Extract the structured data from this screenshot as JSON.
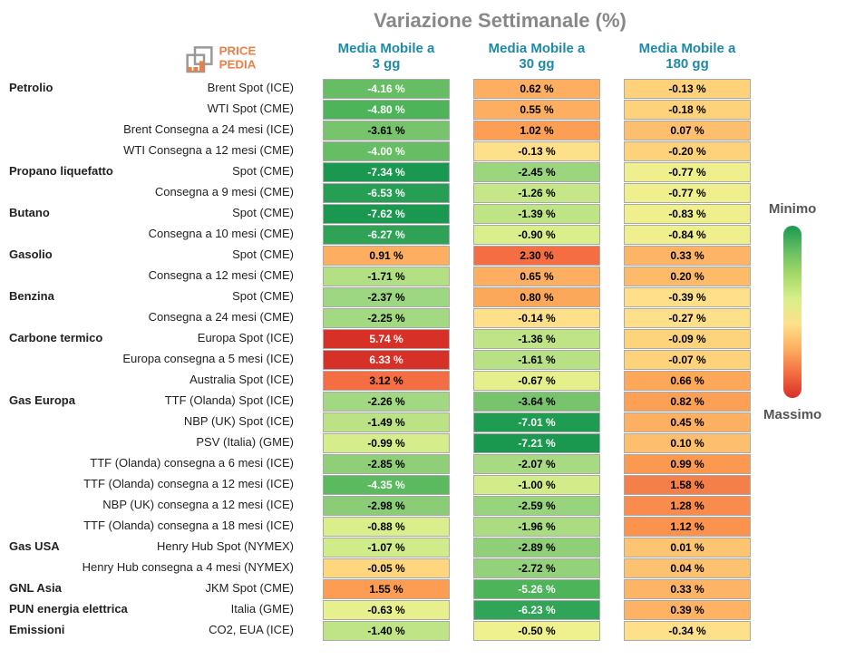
{
  "title": "Variazione Settimanale (%)",
  "columns": [
    {
      "label_line1": "Media Mobile a",
      "label_line2": "3 gg"
    },
    {
      "label_line1": "Media Mobile a",
      "label_line2": "30 gg"
    },
    {
      "label_line1": "Media Mobile a",
      "label_line2": "180 gg"
    }
  ],
  "legend": {
    "top": "Minimo",
    "bottom": "Massimo",
    "gradient": "linear-gradient(to bottom,#1a9850,#66bd63,#a6d96a,#d9ef8b,#fee08b,#fdae61,#f46d43,#d73027)"
  },
  "rows": [
    {
      "category": "Petrolio",
      "name": "Brent Spot (ICE)",
      "cells": [
        {
          "text": "-4.16 %",
          "bg": "#66bd63",
          "fg": "#fff"
        },
        {
          "text": "0.62 %",
          "bg": "#fdae61",
          "fg": "#000"
        },
        {
          "text": "-0.13 %",
          "bg": "#fdd27a",
          "fg": "#000"
        }
      ]
    },
    {
      "name": "WTI Spot (CME)",
      "cells": [
        {
          "text": "-4.80 %",
          "bg": "#4db45a",
          "fg": "#fff"
        },
        {
          "text": "0.55 %",
          "bg": "#fdae61",
          "fg": "#000"
        },
        {
          "text": "-0.18 %",
          "bg": "#fdd27a",
          "fg": "#000"
        }
      ]
    },
    {
      "name": "Brent Consegna a 24 mesi (ICE)",
      "cells": [
        {
          "text": "-3.61 %",
          "bg": "#77c46d",
          "fg": "#000"
        },
        {
          "text": "1.02 %",
          "bg": "#fc9f55",
          "fg": "#000"
        },
        {
          "text": "0.07 %",
          "bg": "#fdbf6e",
          "fg": "#000"
        }
      ]
    },
    {
      "name": "WTI Consegna a 12 mesi (CME)",
      "cells": [
        {
          "text": "-4.00 %",
          "bg": "#66bd63",
          "fg": "#fff"
        },
        {
          "text": "-0.13 %",
          "bg": "#fee08b",
          "fg": "#000"
        },
        {
          "text": "-0.20 %",
          "bg": "#fdd27a",
          "fg": "#000"
        }
      ]
    },
    {
      "category": "Propano liquefatto",
      "name": "Spot (CME)",
      "cells": [
        {
          "text": "-7.34 %",
          "bg": "#1a9850",
          "fg": "#fff"
        },
        {
          "text": "-2.45 %",
          "bg": "#9bd67f",
          "fg": "#000"
        },
        {
          "text": "-0.77 %",
          "bg": "#f0ef8e",
          "fg": "#000"
        }
      ]
    },
    {
      "name": "Consegna a 9 mesi (CME)",
      "cells": [
        {
          "text": "-6.53 %",
          "bg": "#269e53",
          "fg": "#fff"
        },
        {
          "text": "-1.26 %",
          "bg": "#c6e787",
          "fg": "#000"
        },
        {
          "text": "-0.77 %",
          "bg": "#f0ef8e",
          "fg": "#000"
        }
      ]
    },
    {
      "category": "Butano",
      "name": "Spot (CME)",
      "cells": [
        {
          "text": "-7.62 %",
          "bg": "#1a9850",
          "fg": "#fff"
        },
        {
          "text": "-1.39 %",
          "bg": "#bfe486",
          "fg": "#000"
        },
        {
          "text": "-0.83 %",
          "bg": "#f0ef8e",
          "fg": "#000"
        }
      ]
    },
    {
      "name": "Consegna a 10 mesi (CME)",
      "cells": [
        {
          "text": "-6.27 %",
          "bg": "#2ea356",
          "fg": "#fff"
        },
        {
          "text": "-0.90 %",
          "bg": "#daef8b",
          "fg": "#000"
        },
        {
          "text": "-0.84 %",
          "bg": "#f0ef8e",
          "fg": "#000"
        }
      ]
    },
    {
      "category": "Gasolio",
      "name": "Spot (CME)",
      "cells": [
        {
          "text": "0.91 %",
          "bg": "#fdae61",
          "fg": "#000"
        },
        {
          "text": "2.30 %",
          "bg": "#f46d43",
          "fg": "#000"
        },
        {
          "text": "0.33 %",
          "bg": "#fdb466",
          "fg": "#000"
        }
      ]
    },
    {
      "name": "Consegna a 12 mesi (CME)",
      "cells": [
        {
          "text": "-1.71 %",
          "bg": "#b4e084",
          "fg": "#000"
        },
        {
          "text": "0.65 %",
          "bg": "#fdae61",
          "fg": "#000"
        },
        {
          "text": "0.20 %",
          "bg": "#fdbb6a",
          "fg": "#000"
        }
      ]
    },
    {
      "category": "Benzina",
      "name": "Spot (CME)",
      "cells": [
        {
          "text": "-2.37 %",
          "bg": "#9ed781",
          "fg": "#000"
        },
        {
          "text": "0.80 %",
          "bg": "#fca85a",
          "fg": "#000"
        },
        {
          "text": "-0.39 %",
          "bg": "#fee08b",
          "fg": "#000"
        }
      ]
    },
    {
      "name": "Consegna a 24 mesi (CME)",
      "cells": [
        {
          "text": "-2.25 %",
          "bg": "#a3d981",
          "fg": "#000"
        },
        {
          "text": "-0.14 %",
          "bg": "#fee08b",
          "fg": "#000"
        },
        {
          "text": "-0.27 %",
          "bg": "#fee08b",
          "fg": "#000"
        }
      ]
    },
    {
      "category": "Carbone termico",
      "name": "Europa Spot (ICE)",
      "cells": [
        {
          "text": "5.74 %",
          "bg": "#d73027",
          "fg": "#fff"
        },
        {
          "text": "-1.36 %",
          "bg": "#bfe486",
          "fg": "#000"
        },
        {
          "text": "-0.09 %",
          "bg": "#fdd47c",
          "fg": "#000"
        }
      ]
    },
    {
      "name": "Europa consegna a 5 mesi (ICE)",
      "cells": [
        {
          "text": "6.33 %",
          "bg": "#d73027",
          "fg": "#fff"
        },
        {
          "text": "-1.61 %",
          "bg": "#b7e184",
          "fg": "#000"
        },
        {
          "text": "-0.07 %",
          "bg": "#fdd27a",
          "fg": "#000"
        }
      ]
    },
    {
      "name": "Australia Spot (ICE)",
      "cells": [
        {
          "text": "3.12 %",
          "bg": "#f46d43",
          "fg": "#000"
        },
        {
          "text": "-0.67 %",
          "bg": "#e5f08d",
          "fg": "#000"
        },
        {
          "text": "0.66 %",
          "bg": "#fda859",
          "fg": "#000"
        }
      ]
    },
    {
      "category": "Gas Europa",
      "name": "TTF (Olanda) Spot (ICE)",
      "cells": [
        {
          "text": "-2.26 %",
          "bg": "#a2d881",
          "fg": "#000"
        },
        {
          "text": "-3.64 %",
          "bg": "#77c46d",
          "fg": "#000"
        },
        {
          "text": "0.82 %",
          "bg": "#fca055",
          "fg": "#000"
        }
      ]
    },
    {
      "name": "NBP (UK) Spot (ICE)",
      "cells": [
        {
          "text": "-1.49 %",
          "bg": "#bbe285",
          "fg": "#000"
        },
        {
          "text": "-7.01 %",
          "bg": "#1f9b52",
          "fg": "#fff"
        },
        {
          "text": "0.45 %",
          "bg": "#fdb062",
          "fg": "#000"
        }
      ]
    },
    {
      "name": "PSV (Italia) (GME)",
      "cells": [
        {
          "text": "-0.99 %",
          "bg": "#d5ed8a",
          "fg": "#000"
        },
        {
          "text": "-7.21 %",
          "bg": "#1a9850",
          "fg": "#fff"
        },
        {
          "text": "0.10 %",
          "bg": "#fdbe6d",
          "fg": "#000"
        }
      ]
    },
    {
      "name": "TTF (Olanda) consegna a 6 mesi (ICE)",
      "cells": [
        {
          "text": "-2.85 %",
          "bg": "#8ecf78",
          "fg": "#000"
        },
        {
          "text": "-2.07 %",
          "bg": "#a7da82",
          "fg": "#000"
        },
        {
          "text": "0.99 %",
          "bg": "#fc9950",
          "fg": "#000"
        }
      ]
    },
    {
      "name": "TTF (Olanda) consegna a 12 mesi (ICE)",
      "cells": [
        {
          "text": "-4.35 %",
          "bg": "#5bb95e",
          "fg": "#fff"
        },
        {
          "text": "-1.00 %",
          "bg": "#d3ec8a",
          "fg": "#000"
        },
        {
          "text": "1.58 %",
          "bg": "#f57f49",
          "fg": "#000"
        }
      ]
    },
    {
      "name": "NBP (UK) consegna a 12 mesi (ICE)",
      "cells": [
        {
          "text": "-2.98 %",
          "bg": "#8acd76",
          "fg": "#000"
        },
        {
          "text": "-2.59 %",
          "bg": "#97d47d",
          "fg": "#000"
        },
        {
          "text": "1.28 %",
          "bg": "#f98b4c",
          "fg": "#000"
        }
      ]
    },
    {
      "name": "TTF (Olanda) consegna a 18 mesi (ICE)",
      "cells": [
        {
          "text": "-0.88 %",
          "bg": "#daef8b",
          "fg": "#000"
        },
        {
          "text": "-1.96 %",
          "bg": "#abdc82",
          "fg": "#000"
        },
        {
          "text": "1.12 %",
          "bg": "#fb934e",
          "fg": "#000"
        }
      ]
    },
    {
      "category": "Gas USA",
      "name": "Henry Hub Spot (NYMEX)",
      "cells": [
        {
          "text": "-1.07 %",
          "bg": "#d0eb89",
          "fg": "#000"
        },
        {
          "text": "-2.89 %",
          "bg": "#8ecf78",
          "fg": "#000"
        },
        {
          "text": "0.01 %",
          "bg": "#fdc471",
          "fg": "#000"
        }
      ]
    },
    {
      "name": "Henry Hub consegna a 4 mesi (NYMEX)",
      "cells": [
        {
          "text": "-0.05 %",
          "bg": "#fdd67d",
          "fg": "#000"
        },
        {
          "text": "-2.72 %",
          "bg": "#93d17b",
          "fg": "#000"
        },
        {
          "text": "0.04 %",
          "bg": "#fdc270",
          "fg": "#000"
        }
      ]
    },
    {
      "category": "GNL Asia",
      "name": "JKM Spot (CME)",
      "cells": [
        {
          "text": "1.55 %",
          "bg": "#fc9d53",
          "fg": "#000"
        },
        {
          "text": "-5.26 %",
          "bg": "#4db45a",
          "fg": "#fff"
        },
        {
          "text": "0.33 %",
          "bg": "#fdb466",
          "fg": "#000"
        }
      ]
    },
    {
      "category": "PUN energia elettrica",
      "name": "Italia (GME)",
      "cells": [
        {
          "text": "-0.63 %",
          "bg": "#e8f08e",
          "fg": "#000"
        },
        {
          "text": "-6.23 %",
          "bg": "#30a457",
          "fg": "#fff"
        },
        {
          "text": "0.39 %",
          "bg": "#fdb264",
          "fg": "#000"
        }
      ]
    },
    {
      "category": "Emissioni",
      "name": "CO2, EUA (ICE)",
      "cells": [
        {
          "text": "-1.40 %",
          "bg": "#bee486",
          "fg": "#000"
        },
        {
          "text": "-0.50 %",
          "bg": "#eff08e",
          "fg": "#000"
        },
        {
          "text": "-0.34 %",
          "bg": "#fee08b",
          "fg": "#000"
        }
      ]
    }
  ],
  "logo": {
    "text_top": "PRICE",
    "text_bottom": "PEDIA",
    "color_text": "#e8804a",
    "color_shape1": "#e8804a",
    "color_shape2": "#999"
  }
}
